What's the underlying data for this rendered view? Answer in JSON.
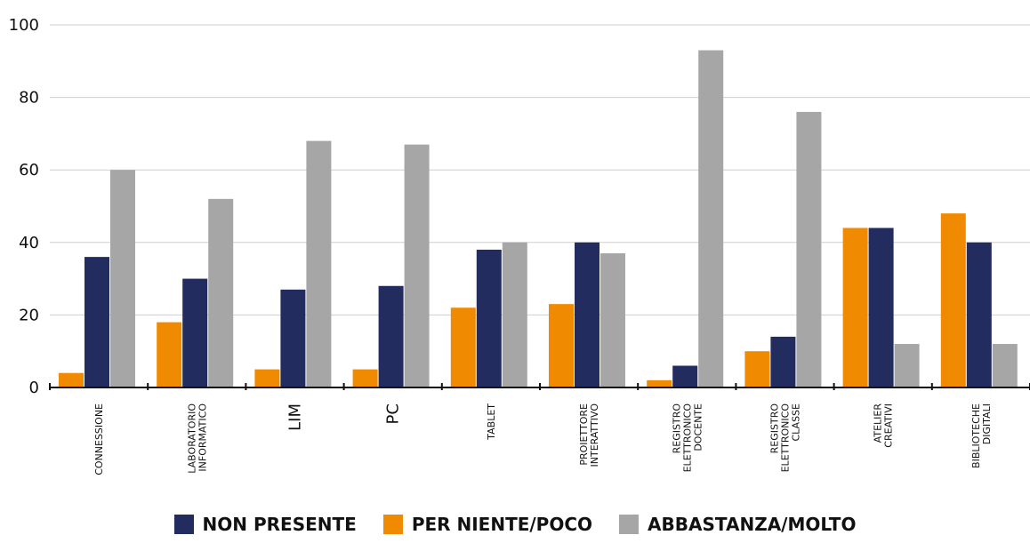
{
  "chart_data": {
    "type": "bar",
    "title": "",
    "xlabel": "",
    "ylabel": "",
    "ylim": [
      0,
      100
    ],
    "yticks": [
      0,
      20,
      40,
      60,
      80,
      100
    ],
    "grid": true,
    "legend_position": "bottom",
    "categories": [
      [
        "CONNESSIONE"
      ],
      [
        "LABORATORIO",
        "INFORMATICO"
      ],
      [
        "LIM"
      ],
      [
        "PC"
      ],
      [
        "TABLET"
      ],
      [
        "PROIETTORE",
        "INTERATTIVO"
      ],
      [
        "REGISTRO",
        "ELETTRONICO",
        "DOCENTE"
      ],
      [
        "REGISTRO",
        "ELETTRONICO",
        "CLASSE"
      ],
      [
        "ATELIER",
        "CREATIVI"
      ],
      [
        "BIBLIOTECHE",
        "DIGITALI"
      ]
    ],
    "series": [
      {
        "name": "PER NIENTE/POCO",
        "color": "#F08A00",
        "values": [
          4,
          18,
          5,
          5,
          22,
          23,
          2,
          10,
          44,
          48
        ]
      },
      {
        "name": "NON PRESENTE",
        "color": "#232C5E",
        "values": [
          36,
          30,
          27,
          28,
          38,
          40,
          6,
          14,
          44,
          40
        ]
      },
      {
        "name": "ABBASTANZA/MOLTO",
        "color": "#A6A6A6",
        "values": [
          60,
          52,
          68,
          67,
          40,
          37,
          93,
          76,
          12,
          12
        ]
      }
    ],
    "legend": [
      {
        "name": "NON PRESENTE",
        "color": "#232C5E"
      },
      {
        "name": "PER NIENTE/POCO",
        "color": "#F08A00"
      },
      {
        "name": "ABBASTANZA/MOLTO",
        "color": "#A6A6A6"
      }
    ]
  }
}
